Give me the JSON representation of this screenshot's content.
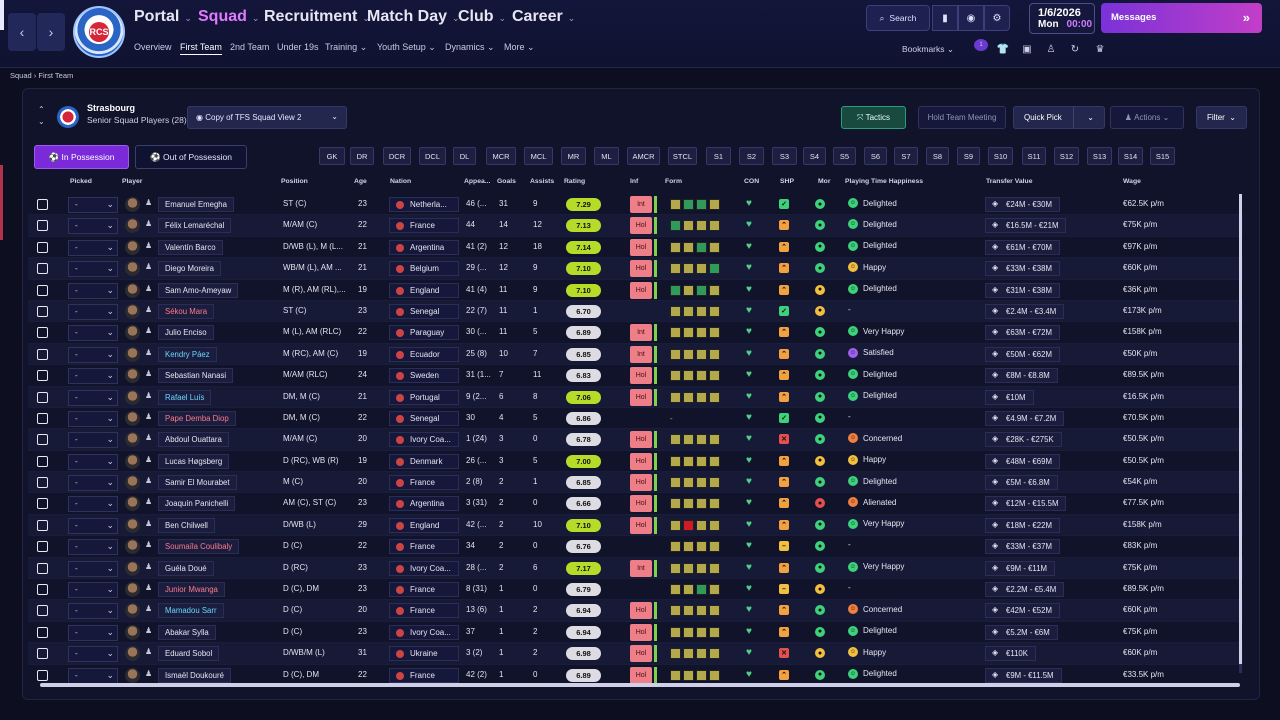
{
  "nav": {
    "main": [
      {
        "label": "Portal",
        "active": false
      },
      {
        "label": "Squad",
        "active": true
      },
      {
        "label": "Recruitment",
        "active": false
      },
      {
        "label": "Match Day",
        "active": false
      },
      {
        "label": "Club",
        "active": false
      },
      {
        "label": "Career",
        "active": false
      }
    ],
    "sub": [
      "Overview",
      "First Team",
      "2nd Team",
      "Under 19s",
      "Training",
      "Youth Setup",
      "Dynamics",
      "More"
    ],
    "sub_active": "First Team",
    "search": "Search",
    "date": "1/6/2026",
    "day": "Mon",
    "time": "00:00",
    "messages": "Messages",
    "bookmarks": "Bookmarks",
    "badge_count": "1"
  },
  "crest_text": "RCS",
  "breadcrumb": [
    "Squad",
    "First Team"
  ],
  "team": {
    "name": "Strasbourg",
    "subtitle": "Senior Squad Players (28)",
    "view": "Copy of TFS Squad View 2"
  },
  "buttons": {
    "tactics": "Tactics",
    "meeting": "Hold Team Meeting",
    "quickpick": "Quick Pick",
    "actions": "Actions",
    "filter": "Filter",
    "in_possession": "In Possession",
    "out_possession": "Out of Possession"
  },
  "positions": [
    "GK",
    "DR",
    "DCR",
    "DCL",
    "DL",
    "MCR",
    "MCL",
    "MR",
    "ML",
    "AMCR",
    "STCL",
    "S1",
    "S2",
    "S3",
    "S4",
    "S5",
    "S6",
    "S7",
    "S8",
    "S9",
    "S10",
    "S11",
    "S12",
    "S13",
    "S14",
    "S15"
  ],
  "columns": {
    "picked": "Picked",
    "player": "Player",
    "position": "Position",
    "age": "Age",
    "nation": "Nation",
    "apps": "Appea...",
    "goals": "Goals",
    "assists": "Assists",
    "rating": "Rating",
    "inf": "Inf",
    "form": "Form",
    "con": "CON",
    "shp": "SHP",
    "mor": "Mor",
    "happiness": "Playing Time Happiness",
    "transfer": "Transfer Value",
    "wage": "Wage"
  },
  "colors": {
    "accent": "#7a2ad8",
    "tactics": "#2a9d7e",
    "messages": "#c23ec8"
  },
  "players": [
    {
      "picked": "-",
      "name": "Emanuel Emegha",
      "name_color": "white",
      "position": "ST (C)",
      "age": "23",
      "nation": "Netherla...",
      "apps": "46 (...",
      "goals": "31",
      "assists": "9",
      "rating": "7.29",
      "inf": "Int",
      "form": [
        "y",
        "g",
        "g",
        "y"
      ],
      "shp": "check",
      "mor": "good",
      "happy": "Delighted",
      "hface": "good",
      "tval": "€24M - €30M",
      "wage": "€62.5K p/m"
    },
    {
      "picked": "-",
      "name": "Félix Lemaréchal",
      "name_color": "white",
      "position": "M/AM (C)",
      "age": "22",
      "nation": "France",
      "apps": "44",
      "goals": "14",
      "assists": "12",
      "rating": "7.13",
      "inf": "Hol",
      "form": [
        "g",
        "y",
        "y",
        "y"
      ],
      "shp": "up",
      "mor": "good",
      "happy": "Delighted",
      "hface": "good",
      "tval": "€16.5M - €21M",
      "wage": "€75K p/m"
    },
    {
      "picked": "-",
      "name": "Valentín Barco",
      "name_color": "white",
      "position": "D/WB (L), M (L...",
      "age": "21",
      "nation": "Argentina",
      "apps": "41 (2)",
      "goals": "12",
      "assists": "18",
      "rating": "7.14",
      "inf": "Hol",
      "form": [
        "y",
        "y",
        "g",
        "y"
      ],
      "shp": "up",
      "mor": "good",
      "happy": "Delighted",
      "hface": "good",
      "tval": "€61M - €70M",
      "wage": "€97K p/m"
    },
    {
      "picked": "-",
      "name": "Diego Moreira",
      "name_color": "white",
      "position": "WB/M (L), AM ...",
      "age": "21",
      "nation": "Belgium",
      "apps": "29 (...",
      "goals": "12",
      "assists": "9",
      "rating": "7.10",
      "inf": "Hol",
      "form": [
        "y",
        "y",
        "y",
        "g"
      ],
      "shp": "up",
      "mor": "good",
      "happy": "Happy",
      "hface": "ok",
      "tval": "€33M - €38M",
      "wage": "€60K p/m"
    },
    {
      "picked": "-",
      "name": "Sam Amo-Ameyaw",
      "name_color": "white",
      "position": "M (R), AM (RL),...",
      "age": "19",
      "nation": "England",
      "apps": "41 (4)",
      "goals": "11",
      "assists": "9",
      "rating": "7.10",
      "inf": "Hol",
      "form": [
        "g",
        "y",
        "g",
        "y"
      ],
      "shp": "up",
      "mor": "ok",
      "happy": "Delighted",
      "hface": "good",
      "tval": "€31M - €38M",
      "wage": "€36K p/m"
    },
    {
      "picked": "-",
      "name": "Sékou Mara",
      "name_color": "red",
      "position": "ST (C)",
      "age": "23",
      "nation": "Senegal",
      "apps": "22 (7)",
      "goals": "11",
      "assists": "1",
      "rating": "6.70",
      "inf": "",
      "form": [
        "y",
        "y",
        "y",
        "y"
      ],
      "shp": "check",
      "mor": "ok",
      "happy": "-",
      "hface": "",
      "tval": "€2.4M - €3.4M",
      "wage": "€173K p/m"
    },
    {
      "picked": "-",
      "name": "Julio Enciso",
      "name_color": "white",
      "position": "M (L), AM (RLC)",
      "age": "22",
      "nation": "Paraguay",
      "apps": "30 (...",
      "goals": "11",
      "assists": "5",
      "rating": "6.89",
      "inf": "Int",
      "form": [
        "y",
        "y",
        "y",
        "y"
      ],
      "shp": "up",
      "mor": "good",
      "happy": "Very Happy",
      "hface": "good",
      "tval": "€63M - €72M",
      "wage": "€158K p/m"
    },
    {
      "picked": "-",
      "name": "Kendry Páez",
      "name_color": "cyan",
      "position": "M (RC), AM (C)",
      "age": "19",
      "nation": "Ecuador",
      "apps": "25 (8)",
      "goals": "10",
      "assists": "7",
      "rating": "6.85",
      "inf": "Int",
      "form": [
        "y",
        "y",
        "y",
        "y"
      ],
      "shp": "up",
      "mor": "good",
      "happy": "Satisfied",
      "hface": "purple",
      "tval": "€50M - €62M",
      "wage": "€50K p/m"
    },
    {
      "picked": "-",
      "name": "Sebastian Nanasi",
      "name_color": "white",
      "position": "M/AM (RLC)",
      "age": "24",
      "nation": "Sweden",
      "apps": "31 (1...",
      "goals": "7",
      "assists": "11",
      "rating": "6.83",
      "inf": "Hol",
      "form": [
        "y",
        "y",
        "y",
        "y"
      ],
      "shp": "up",
      "mor": "good",
      "happy": "Delighted",
      "hface": "good",
      "tval": "€8M - €8.8M",
      "wage": "€89.5K p/m"
    },
    {
      "picked": "-",
      "name": "Rafael Luís",
      "name_color": "cyan",
      "position": "DM, M (C)",
      "age": "21",
      "nation": "Portugal",
      "apps": "9 (2...",
      "goals": "6",
      "assists": "8",
      "rating": "7.06",
      "inf": "Hol",
      "form": [
        "y",
        "y",
        "y",
        "y"
      ],
      "shp": "up",
      "mor": "good",
      "happy": "Delighted",
      "hface": "good",
      "tval": "€10M",
      "wage": "€16.5K p/m"
    },
    {
      "picked": "-",
      "name": "Pape Demba Diop",
      "name_color": "red",
      "position": "DM, M (C)",
      "age": "22",
      "nation": "Senegal",
      "apps": "30",
      "goals": "4",
      "assists": "5",
      "rating": "6.86",
      "inf": "",
      "form": [],
      "shp": "check",
      "mor": "good",
      "happy": "-",
      "hface": "",
      "tval": "€4.9M - €7.2M",
      "wage": "€70.5K p/m"
    },
    {
      "picked": "-",
      "name": "Abdoul Ouattara",
      "name_color": "white",
      "position": "M/AM (C)",
      "age": "20",
      "nation": "Ivory Coa...",
      "apps": "1 (24)",
      "goals": "3",
      "assists": "0",
      "rating": "6.78",
      "inf": "Hol",
      "form": [
        "y",
        "y",
        "y",
        "y"
      ],
      "shp": "x",
      "mor": "good",
      "happy": "Concerned",
      "hface": "bad",
      "tval": "€28K - €275K",
      "wage": "€50.5K p/m"
    },
    {
      "picked": "-",
      "name": "Lucas Høgsberg",
      "name_color": "white",
      "position": "D (RC), WB (R)",
      "age": "19",
      "nation": "Denmark",
      "apps": "26 (...",
      "goals": "3",
      "assists": "5",
      "rating": "7.00",
      "inf": "Hol",
      "form": [
        "y",
        "y",
        "y",
        "y"
      ],
      "shp": "up",
      "mor": "ok",
      "happy": "Happy",
      "hface": "ok",
      "tval": "€48M - €69M",
      "wage": "€50.5K p/m"
    },
    {
      "picked": "-",
      "name": "Samir El Mourabet",
      "name_color": "white",
      "position": "M (C)",
      "age": "20",
      "nation": "France",
      "apps": "2 (8)",
      "goals": "2",
      "assists": "1",
      "rating": "6.85",
      "inf": "Hol",
      "form": [
        "y",
        "y",
        "y",
        "y"
      ],
      "shp": "up",
      "mor": "good",
      "happy": "Delighted",
      "hface": "good",
      "tval": "€5M - €6.8M",
      "wage": "€54K p/m"
    },
    {
      "picked": "-",
      "name": "Joaquín Panichelli",
      "name_color": "white",
      "position": "AM (C), ST (C)",
      "age": "23",
      "nation": "Argentina",
      "apps": "3 (31)",
      "goals": "2",
      "assists": "0",
      "rating": "6.66",
      "inf": "Hol",
      "form": [
        "y",
        "y",
        "y",
        "y"
      ],
      "shp": "up",
      "mor": "bad",
      "happy": "Alienated",
      "hface": "bad",
      "tval": "€12M - €15.5M",
      "wage": "€77.5K p/m"
    },
    {
      "picked": "-",
      "name": "Ben Chilwell",
      "name_color": "white",
      "position": "D/WB (L)",
      "age": "29",
      "nation": "England",
      "apps": "42 (...",
      "goals": "2",
      "assists": "10",
      "rating": "7.10",
      "inf": "Hol",
      "form": [
        "y",
        "r",
        "y",
        "y"
      ],
      "shp": "up",
      "mor": "good",
      "happy": "Very Happy",
      "hface": "good",
      "tval": "€18M - €22M",
      "wage": "€158K p/m"
    },
    {
      "picked": "-",
      "name": "Soumaïla Coulibaly",
      "name_color": "red",
      "position": "D (C)",
      "age": "22",
      "nation": "France",
      "apps": "34",
      "goals": "2",
      "assists": "0",
      "rating": "6.76",
      "inf": "",
      "form": [
        "y",
        "y",
        "y",
        "y"
      ],
      "shp": "minus",
      "mor": "good",
      "happy": "-",
      "hface": "",
      "tval": "€33M - €37M",
      "wage": "€83K p/m"
    },
    {
      "picked": "-",
      "name": "Guéla Doué",
      "name_color": "white",
      "position": "D (RC)",
      "age": "23",
      "nation": "Ivory Coa...",
      "apps": "28 (...",
      "goals": "2",
      "assists": "6",
      "rating": "7.17",
      "inf": "Int",
      "form": [
        "y",
        "y",
        "y",
        "y"
      ],
      "shp": "up",
      "mor": "good",
      "happy": "Very Happy",
      "hface": "good",
      "tval": "€9M - €11M",
      "wage": "€75K p/m"
    },
    {
      "picked": "-",
      "name": "Junior Mwanga",
      "name_color": "red",
      "position": "D (C), DM",
      "age": "23",
      "nation": "France",
      "apps": "8 (31)",
      "goals": "1",
      "assists": "0",
      "rating": "6.79",
      "inf": "",
      "form": [
        "y",
        "y",
        "g",
        "y"
      ],
      "shp": "minus",
      "mor": "ok",
      "happy": "-",
      "hface": "",
      "tval": "€2.2M - €5.4M",
      "wage": "€89.5K p/m"
    },
    {
      "picked": "-",
      "name": "Mamadou Sarr",
      "name_color": "cyan",
      "position": "D (C)",
      "age": "20",
      "nation": "France",
      "apps": "13 (6)",
      "goals": "1",
      "assists": "2",
      "rating": "6.94",
      "inf": "Hol",
      "form": [
        "y",
        "y",
        "y",
        "y"
      ],
      "shp": "up",
      "mor": "good",
      "happy": "Concerned",
      "hface": "bad",
      "tval": "€42M - €52M",
      "wage": "€60K p/m"
    },
    {
      "picked": "-",
      "name": "Abakar Sylla",
      "name_color": "white",
      "position": "D (C)",
      "age": "23",
      "nation": "Ivory Coa...",
      "apps": "37",
      "goals": "1",
      "assists": "2",
      "rating": "6.94",
      "inf": "Hol",
      "form": [
        "y",
        "y",
        "y",
        "y"
      ],
      "shp": "up",
      "mor": "good",
      "happy": "Delighted",
      "hface": "good",
      "tval": "€5.2M - €6M",
      "wage": "€75K p/m"
    },
    {
      "picked": "-",
      "name": "Eduard Sobol",
      "name_color": "white",
      "position": "D/WB/M (L)",
      "age": "31",
      "nation": "Ukraine",
      "apps": "3 (2)",
      "goals": "1",
      "assists": "2",
      "rating": "6.98",
      "inf": "Hol",
      "form": [
        "y",
        "y",
        "y",
        "y"
      ],
      "shp": "x",
      "mor": "ok",
      "happy": "Happy",
      "hface": "ok",
      "tval": "€110K",
      "wage": "€60K p/m"
    },
    {
      "picked": "-",
      "name": "Ismaël Doukouré",
      "name_color": "white",
      "position": "D (C), DM",
      "age": "22",
      "nation": "France",
      "apps": "42 (2)",
      "goals": "1",
      "assists": "0",
      "rating": "6.89",
      "inf": "Hol",
      "form": [
        "y",
        "y",
        "y",
        "y"
      ],
      "shp": "up",
      "mor": "good",
      "happy": "Delighted",
      "hface": "good",
      "tval": "€9M - €11.5M",
      "wage": "€33.5K p/m"
    }
  ]
}
